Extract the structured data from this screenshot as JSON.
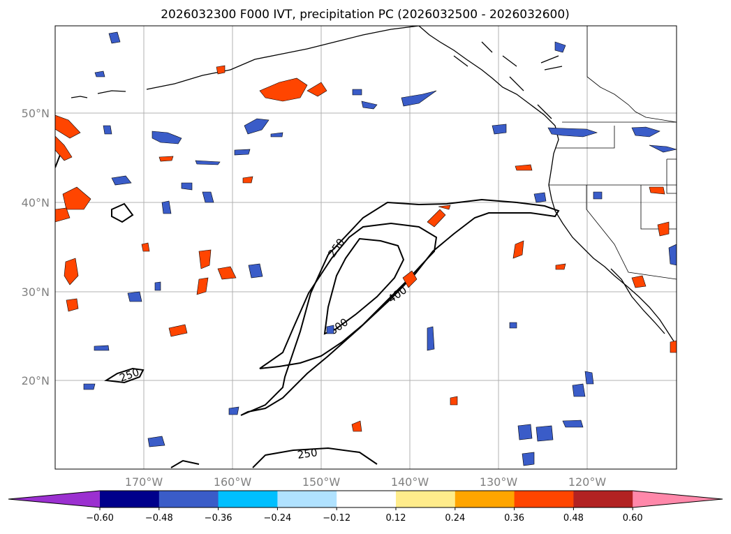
{
  "title": "2026032300 F000 IVT, precipitation PC (2026032500 - 2026032600)",
  "lat_labels": [
    "50°N",
    "40°N",
    "30°N",
    "20°N"
  ],
  "lon_labels": [
    "170°W",
    "160°W",
    "150°W",
    "140°W",
    "130°W",
    "120°W"
  ],
  "contour_levels": [
    "250",
    "250",
    "250",
    "400",
    "600"
  ],
  "colorbar": {
    "colors": [
      "#9b30d0",
      "#00008b",
      "#3a5cc8",
      "#00bfff",
      "#b0e2ff",
      "#ffffff",
      "#ffec8b",
      "#ffa500",
      "#ff4500",
      "#b22222",
      "#ff88aa"
    ],
    "ticks": [
      "−0.60",
      "−0.48",
      "−0.36",
      "−0.24",
      "−0.12",
      "0.12",
      "0.24",
      "0.36",
      "0.48",
      "0.60"
    ]
  }
}
